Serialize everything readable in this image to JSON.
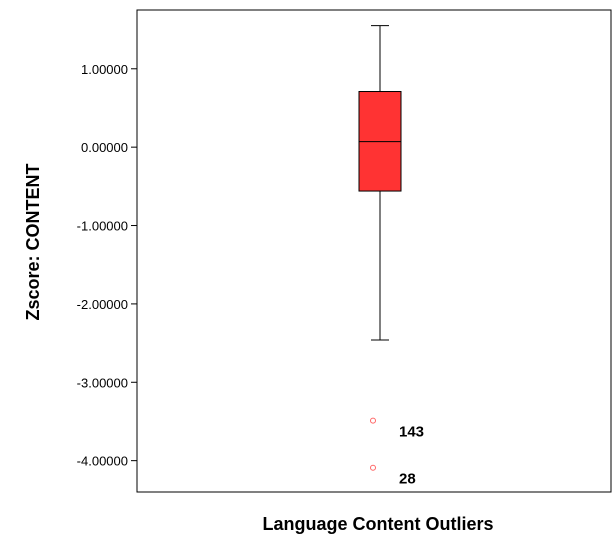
{
  "chart_data": {
    "type": "boxplot",
    "title": "",
    "xlabel": "Language Content Outliers",
    "ylabel": "Zscore: CONTENT",
    "ylim": [
      -4.4,
      1.75
    ],
    "yticks": [
      {
        "value": 1.0,
        "label": "1.00000"
      },
      {
        "value": 0.0,
        "label": "0.00000"
      },
      {
        "value": -1.0,
        "label": "-1.00000"
      },
      {
        "value": -2.0,
        "label": "-2.00000"
      },
      {
        "value": -3.0,
        "label": "-3.00000"
      },
      {
        "value": -4.0,
        "label": "-4.00000"
      }
    ],
    "grid": false,
    "box": {
      "whisker_low": -2.46,
      "q1": -0.56,
      "median": 0.07,
      "q3": 0.71,
      "whisker_high": 1.55,
      "fill": "#ff3333"
    },
    "outliers": [
      {
        "value": -3.49,
        "label": "143"
      },
      {
        "value": -4.09,
        "label": "28"
      }
    ],
    "outlier_color": "#ff6666"
  }
}
